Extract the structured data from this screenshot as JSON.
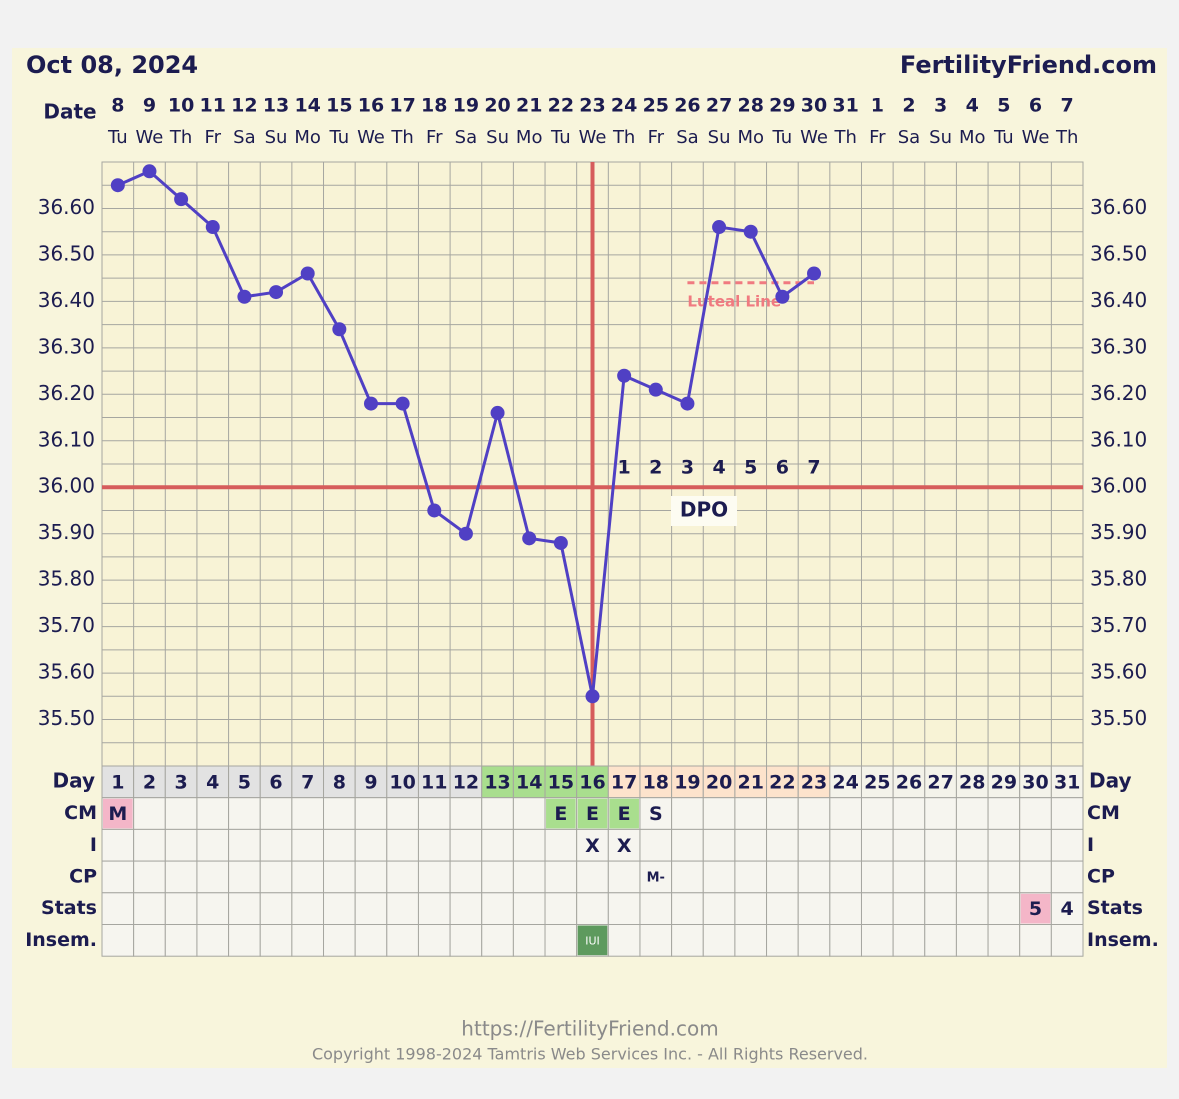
{
  "chart_data": {
    "type": "line",
    "date_heading": "Oct 08, 2024",
    "site": "FertilityFriend.com",
    "date_label": "Date",
    "day_label": "Day",
    "dates": [
      "8",
      "9",
      "10",
      "11",
      "12",
      "13",
      "14",
      "15",
      "16",
      "17",
      "18",
      "19",
      "20",
      "21",
      "22",
      "23",
      "24",
      "25",
      "26",
      "27",
      "28",
      "29",
      "30",
      "31",
      "1",
      "2",
      "3",
      "4",
      "5",
      "6",
      "7"
    ],
    "weekdays": [
      "Tu",
      "We",
      "Th",
      "Fr",
      "Sa",
      "Su",
      "Mo",
      "Tu",
      "We",
      "Th",
      "Fr",
      "Sa",
      "Su",
      "Mo",
      "Tu",
      "We",
      "Th",
      "Fr",
      "Sa",
      "Su",
      "Mo",
      "Tu",
      "We",
      "Th",
      "Fr",
      "Sa",
      "Su",
      "Mo",
      "Tu",
      "We",
      "Th"
    ],
    "categories": [
      "1",
      "2",
      "3",
      "4",
      "5",
      "6",
      "7",
      "8",
      "9",
      "10",
      "11",
      "12",
      "13",
      "14",
      "15",
      "16",
      "17",
      "18",
      "19",
      "20",
      "21",
      "22",
      "23",
      "24",
      "25",
      "26",
      "27",
      "28",
      "29",
      "30",
      "31"
    ],
    "day_colors": [
      "#e2e2e2",
      "#e2e2e2",
      "#e2e2e2",
      "#e2e2e2",
      "#e2e2e2",
      "#e2e2e2",
      "#e2e2e2",
      "#e2e2e2",
      "#e2e2e2",
      "#e2e2e2",
      "#e2e2e2",
      "#e2e2e2",
      "#a9de8e",
      "#a9de8e",
      "#a9de8e",
      "#a9de8e",
      "#fde3cc",
      "#fde3cc",
      "#fde3cc",
      "#fde3cc",
      "#fde3cc",
      "#fde3cc",
      "#fde3cc",
      "#f4f3ea",
      "#f4f3ea",
      "#f4f3ea",
      "#f4f3ea",
      "#f4f3ea",
      "#f4f3ea",
      "#f4f3ea",
      "#f4f3ea"
    ],
    "series": [
      {
        "name": "Temperature",
        "color": "#5040c4",
        "values": [
          36.65,
          36.68,
          36.62,
          36.56,
          36.41,
          36.42,
          36.46,
          36.34,
          36.18,
          36.18,
          35.95,
          35.9,
          36.16,
          35.89,
          35.88,
          35.55,
          36.24,
          36.21,
          36.18,
          36.56,
          36.55,
          36.41,
          36.46,
          null,
          null,
          null,
          null,
          null,
          null,
          null,
          null
        ]
      }
    ],
    "ylim": [
      35.4,
      36.7
    ],
    "yticks": [
      {
        "value": 35.5,
        "label": "35.50"
      },
      {
        "value": 35.6,
        "label": "35.60"
      },
      {
        "value": 35.7,
        "label": "35.70"
      },
      {
        "value": 35.8,
        "label": "35.80"
      },
      {
        "value": 35.9,
        "label": "35.90"
      },
      {
        "value": 36.0,
        "label": "36.00"
      },
      {
        "value": 36.1,
        "label": "36.10"
      },
      {
        "value": 36.2,
        "label": "36.20"
      },
      {
        "value": 36.3,
        "label": "36.30"
      },
      {
        "value": 36.4,
        "label": "36.40"
      },
      {
        "value": 36.5,
        "label": "36.50"
      },
      {
        "value": 36.6,
        "label": "36.60"
      }
    ],
    "minor_yticks": [
      35.45,
      35.55,
      35.65,
      35.75,
      35.85,
      35.95,
      36.05,
      36.15,
      36.25,
      36.35,
      36.45,
      36.55,
      36.65
    ],
    "grid": true,
    "coverline": {
      "value": 36.0,
      "color": "#d65c5c"
    },
    "ovulation": {
      "day": 16,
      "color": "#d65c5c"
    },
    "dpo_label": "DPO",
    "dpo": [
      null,
      null,
      null,
      null,
      null,
      null,
      null,
      null,
      null,
      null,
      null,
      null,
      null,
      null,
      null,
      null,
      "1",
      "2",
      "3",
      "4",
      "5",
      "6",
      "7",
      null,
      null,
      null,
      null,
      null,
      null,
      null,
      null
    ],
    "luteal_line": {
      "label": "Luteal Line",
      "value": 36.44,
      "from_day": 19,
      "to_day": 23,
      "color": "#f07a80"
    },
    "rows": [
      {
        "label": "CM",
        "cells": [
          {
            "text": "M",
            "color": "#f4b6c8"
          },
          null,
          null,
          null,
          null,
          null,
          null,
          null,
          null,
          null,
          null,
          null,
          null,
          null,
          {
            "text": "E",
            "color": "#a9de8e"
          },
          {
            "text": "E",
            "color": "#a9de8e"
          },
          {
            "text": "E",
            "color": "#a9de8e"
          },
          {
            "text": "S"
          },
          null,
          null,
          null,
          null,
          null,
          null,
          null,
          null,
          null,
          null,
          null,
          null,
          null
        ]
      },
      {
        "label": "I",
        "cells": [
          null,
          null,
          null,
          null,
          null,
          null,
          null,
          null,
          null,
          null,
          null,
          null,
          null,
          null,
          null,
          {
            "text": "X"
          },
          {
            "text": "X"
          },
          null,
          null,
          null,
          null,
          null,
          null,
          null,
          null,
          null,
          null,
          null,
          null,
          null,
          null
        ]
      },
      {
        "label": "CP",
        "cells": [
          null,
          null,
          null,
          null,
          null,
          null,
          null,
          null,
          null,
          null,
          null,
          null,
          null,
          null,
          null,
          null,
          null,
          {
            "text": "M-"
          },
          null,
          null,
          null,
          null,
          null,
          null,
          null,
          null,
          null,
          null,
          null,
          null,
          null
        ]
      },
      {
        "label": "Stats",
        "cells": [
          null,
          null,
          null,
          null,
          null,
          null,
          null,
          null,
          null,
          null,
          null,
          null,
          null,
          null,
          null,
          null,
          null,
          null,
          null,
          null,
          null,
          null,
          null,
          null,
          null,
          null,
          null,
          null,
          null,
          {
            "text": "5",
            "color": "#f4b6c8"
          },
          {
            "text": "4"
          }
        ]
      },
      {
        "label": "Insem.",
        "cells": [
          null,
          null,
          null,
          null,
          null,
          null,
          null,
          null,
          null,
          null,
          null,
          null,
          null,
          null,
          null,
          {
            "text": "IUI",
            "color": "#5e9a5e"
          },
          null,
          null,
          null,
          null,
          null,
          null,
          null,
          null,
          null,
          null,
          null,
          null,
          null,
          null,
          null
        ]
      }
    ],
    "footer_url": "https://FertilityFriend.com",
    "copyright": "Copyright 1998-2024 Tamtris Web Services Inc. - All Rights Reserved."
  }
}
